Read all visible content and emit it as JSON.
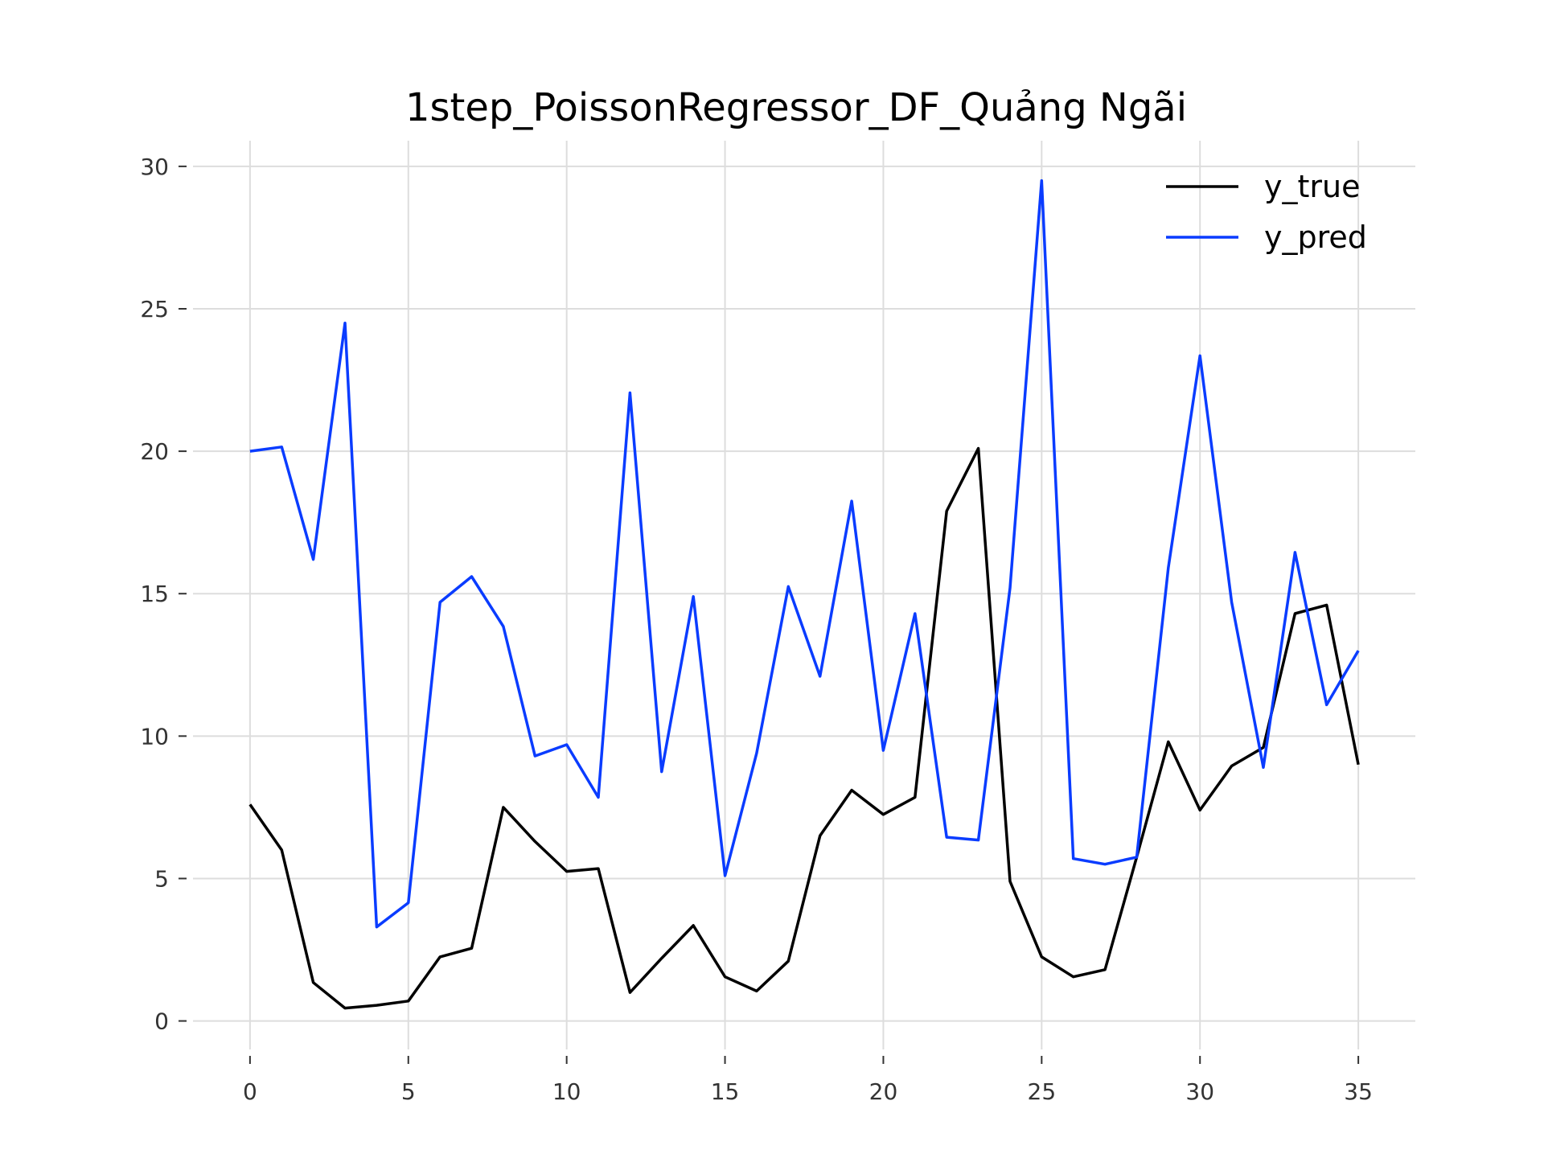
{
  "chart_data": {
    "type": "line",
    "title": "1step_PoissonRegressor_DF_Quảng Ngãi",
    "xlabel": "",
    "ylabel": "",
    "xlim": [
      -1.8,
      36.8
    ],
    "ylim": [
      -1.0,
      30.9
    ],
    "xticks": [
      0,
      5,
      10,
      15,
      20,
      25,
      30,
      35
    ],
    "yticks": [
      0,
      5,
      10,
      15,
      20,
      25,
      30
    ],
    "grid": true,
    "legend_position": "top-right",
    "x": [
      0,
      1,
      2,
      3,
      4,
      5,
      6,
      7,
      8,
      9,
      10,
      11,
      12,
      13,
      14,
      15,
      16,
      17,
      18,
      19,
      20,
      21,
      22,
      23,
      24,
      25,
      26,
      27,
      28,
      29,
      30,
      31,
      32,
      33,
      34,
      35
    ],
    "series": [
      {
        "name": "y_true",
        "color": "#000000",
        "values": [
          7.6,
          6.0,
          1.35,
          0.45,
          0.55,
          0.7,
          2.25,
          2.55,
          7.5,
          6.3,
          5.25,
          5.35,
          1.0,
          2.2,
          3.35,
          1.55,
          1.05,
          2.1,
          6.5,
          8.1,
          7.25,
          7.85,
          17.9,
          20.1,
          4.9,
          2.25,
          1.55,
          1.8,
          5.75,
          9.8,
          7.4,
          8.95,
          9.6,
          14.3,
          14.6,
          9.0
        ]
      },
      {
        "name": "y_pred",
        "color": "#0a3cff",
        "values": [
          20.0,
          20.15,
          16.2,
          24.5,
          3.3,
          4.15,
          14.7,
          15.6,
          13.85,
          9.3,
          9.7,
          7.85,
          22.05,
          8.75,
          14.9,
          5.1,
          9.4,
          15.25,
          12.1,
          18.25,
          9.5,
          14.3,
          6.45,
          6.35,
          15.2,
          29.5,
          5.7,
          5.5,
          5.75,
          15.9,
          23.35,
          14.7,
          8.9,
          16.45,
          11.1,
          13.0
        ]
      }
    ]
  }
}
